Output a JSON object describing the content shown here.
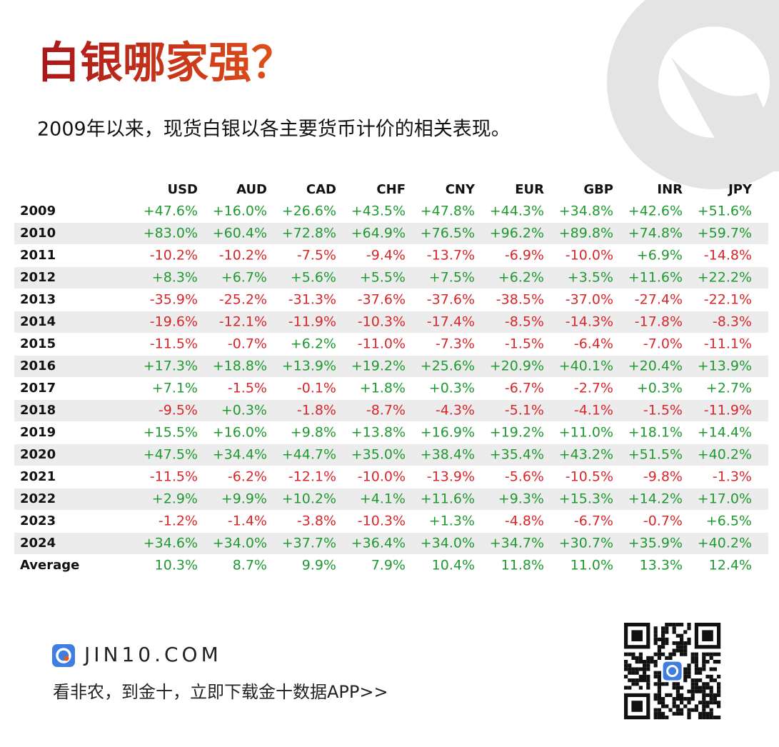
{
  "header": {
    "title": "白银哪家强？",
    "subtitle": "2009年以来，现货白银以各主要货币计价的相关表现。"
  },
  "table": {
    "columns": [
      "USD",
      "AUD",
      "CAD",
      "CHF",
      "CNY",
      "EUR",
      "GBP",
      "INR",
      "JPY"
    ],
    "rows": [
      {
        "label": "2009",
        "cells": [
          "+47.6%",
          "+16.0%",
          "+26.6%",
          "+43.5%",
          "+47.8%",
          "+44.3%",
          "+34.8%",
          "+42.6%",
          "+51.6%"
        ]
      },
      {
        "label": "2010",
        "cells": [
          "+83.0%",
          "+60.4%",
          "+72.8%",
          "+64.9%",
          "+76.5%",
          "+96.2%",
          "+89.8%",
          "+74.8%",
          "+59.7%"
        ]
      },
      {
        "label": "2011",
        "cells": [
          "-10.2%",
          "-10.2%",
          "-7.5%",
          "-9.4%",
          "-13.7%",
          "-6.9%",
          "-10.0%",
          "+6.9%",
          "-14.8%"
        ]
      },
      {
        "label": "2012",
        "cells": [
          "+8.3%",
          "+6.7%",
          "+5.6%",
          "+5.5%",
          "+7.5%",
          "+6.2%",
          "+3.5%",
          "+11.6%",
          "+22.2%"
        ]
      },
      {
        "label": "2013",
        "cells": [
          "-35.9%",
          "-25.2%",
          "-31.3%",
          "-37.6%",
          "-37.6%",
          "-38.5%",
          "-37.0%",
          "-27.4%",
          "-22.1%"
        ]
      },
      {
        "label": "2014",
        "cells": [
          "-19.6%",
          "-12.1%",
          "-11.9%",
          "-10.3%",
          "-17.4%",
          "-8.5%",
          "-14.3%",
          "-17.8%",
          "-8.3%"
        ]
      },
      {
        "label": "2015",
        "cells": [
          "-11.5%",
          "-0.7%",
          "+6.2%",
          "-11.0%",
          "-7.3%",
          "-1.5%",
          "-6.4%",
          "-7.0%",
          "-11.1%"
        ]
      },
      {
        "label": "2016",
        "cells": [
          "+17.3%",
          "+18.8%",
          "+13.9%",
          "+19.2%",
          "+25.6%",
          "+20.9%",
          "+40.1%",
          "+20.4%",
          "+13.9%"
        ]
      },
      {
        "label": "2017",
        "cells": [
          "+7.1%",
          "-1.5%",
          "-0.1%",
          "+1.8%",
          "+0.3%",
          "-6.7%",
          "-2.7%",
          "+0.3%",
          "+2.7%"
        ]
      },
      {
        "label": "2018",
        "cells": [
          "-9.5%",
          "+0.3%",
          "-1.8%",
          "-8.7%",
          "-4.3%",
          "-5.1%",
          "-4.1%",
          "-1.5%",
          "-11.9%"
        ]
      },
      {
        "label": "2019",
        "cells": [
          "+15.5%",
          "+16.0%",
          "+9.8%",
          "+13.8%",
          "+16.9%",
          "+19.2%",
          "+11.0%",
          "+18.1%",
          "+14.4%"
        ]
      },
      {
        "label": "2020",
        "cells": [
          "+47.5%",
          "+34.4%",
          "+44.7%",
          "+35.0%",
          "+38.4%",
          "+35.4%",
          "+43.2%",
          "+51.5%",
          "+40.2%"
        ]
      },
      {
        "label": "2021",
        "cells": [
          "-11.5%",
          "-6.2%",
          "-12.1%",
          "-10.0%",
          "-13.9%",
          "-5.6%",
          "-10.5%",
          "-9.8%",
          "-1.3%"
        ]
      },
      {
        "label": "2022",
        "cells": [
          "+2.9%",
          "+9.9%",
          "+10.2%",
          "+4.1%",
          "+11.6%",
          "+9.3%",
          "+15.3%",
          "+14.2%",
          "+17.0%"
        ]
      },
      {
        "label": "2023",
        "cells": [
          "-1.2%",
          "-1.4%",
          "-3.8%",
          "-10.3%",
          "+1.3%",
          "-4.8%",
          "-6.7%",
          "-0.7%",
          "+6.5%"
        ]
      },
      {
        "label": "2024",
        "cells": [
          "+34.6%",
          "+34.0%",
          "+37.7%",
          "+36.4%",
          "+34.0%",
          "+34.7%",
          "+30.7%",
          "+35.9%",
          "+40.2%"
        ]
      },
      {
        "label": "Average",
        "cells": [
          "10.3%",
          "8.7%",
          "9.9%",
          "7.9%",
          "10.4%",
          "11.8%",
          "11.0%",
          "13.3%",
          "12.4%"
        ]
      }
    ]
  },
  "footer": {
    "brand": "JIN10.COM",
    "slogan": "看非农，到金十，立即下载金十数据APP>>"
  }
}
